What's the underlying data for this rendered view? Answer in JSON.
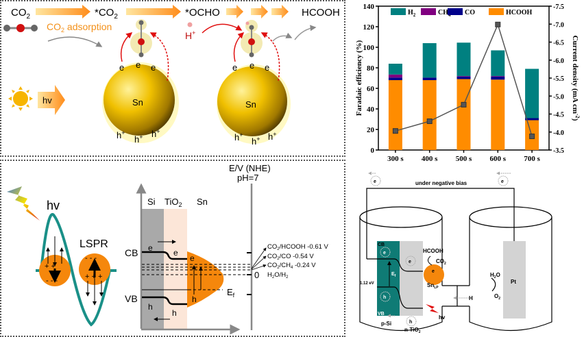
{
  "panel_a": {
    "steps": [
      "CO2",
      "*CO2",
      "*OCHO",
      "HCOOH"
    ],
    "step_subs": {
      "co2": "CO",
      "sub2": "2",
      "ast_co2": "*CO",
      "ocho": "*OCHO",
      "hcooh": "HCOOH"
    },
    "adsorption_label": "CO",
    "adsorption_sub": "2",
    "adsorption_rest": " adsorption",
    "hv_label": "hv",
    "proton_label": "H",
    "proton_sup": "+",
    "particle_label": "Sn",
    "electron_label": "e",
    "electron_sup": "-",
    "hole_label": "h",
    "hole_sup": "+"
  },
  "panel_b": {
    "hv_label": "hv",
    "lspr_label": "LSPR",
    "axis_title": "E/V (NHE)",
    "ph_label": "pH=7",
    "layers": [
      "Si",
      "TiO",
      "Sn"
    ],
    "tio2_sub": "2",
    "cb_label": "CB",
    "vb_label": "VB",
    "ef_label": "E",
    "ef_sub": "f",
    "zero_label": "0",
    "potentials": [
      {
        "pre": "CO",
        "sub": "2",
        "post": "/HCOOH -0.61 V"
      },
      {
        "pre": "CO",
        "sub": "2",
        "post": "/CO -0.54 V"
      },
      {
        "pre": "CO",
        "sub": "2",
        "post": "/CH",
        "sub2": "4",
        "post2": " -0.24 V"
      },
      {
        "pre": "H",
        "sub": "2",
        "post": "O/H",
        "sub2": "2",
        "post2": ""
      }
    ],
    "electron": "e",
    "hole": "h"
  },
  "chart_data": {
    "type": "bar",
    "stacked": true,
    "categories": [
      "300 s",
      "400 s",
      "500 s",
      "600 s",
      "700 s"
    ],
    "series": [
      {
        "name": "HCOOH",
        "color": "#ff8c00",
        "values": [
          68,
          68,
          69,
          68.5,
          29
        ]
      },
      {
        "name": "CO",
        "color": "#00008b",
        "values": [
          2.5,
          2.5,
          2.5,
          3,
          2
        ]
      },
      {
        "name": "CH4",
        "color": "#800080",
        "values": [
          3,
          0,
          0.5,
          0.5,
          0
        ]
      },
      {
        "name": "H2",
        "color": "#008080",
        "values": [
          10.5,
          33.5,
          32.5,
          25,
          48
        ]
      }
    ],
    "line_series": {
      "name": "Current density",
      "color": "#555555",
      "values": [
        -4.03,
        -4.3,
        -4.76,
        -6.99,
        -3.88
      ]
    },
    "legend": [
      "H2",
      "CH4",
      "CO",
      "HCOOH"
    ],
    "legend_display": [
      {
        "t": "H",
        "s": "2"
      },
      {
        "t": "CH",
        "s": "4"
      },
      {
        "t": "CO",
        "s": ""
      },
      {
        "t": "HCOOH",
        "s": ""
      }
    ],
    "ylabel": "Faradaic efficiency (%)",
    "ylabel_right": "Current density (mA cm",
    "ylabel_right_sup": "-2",
    "ylabel_right_end": ")",
    "ylim": [
      0,
      140
    ],
    "yticks": [
      0,
      20,
      40,
      60,
      80,
      100,
      120,
      140
    ],
    "y2lim": [
      -3.5,
      -7.5
    ],
    "y2ticks": [
      "-3.5",
      "-4.0",
      "-4.5",
      "-5.0",
      "-5.5",
      "-6.0",
      "-6.5",
      "-7.0",
      "-7.5"
    ],
    "legend_position": "top"
  },
  "panel_d": {
    "bias_label": "under negative bias",
    "electron": "e",
    "cb_label": "CB",
    "vb_label": "VB",
    "ef_label": "E",
    "ef_sub": "f",
    "gap_label": "1.12 eV",
    "hole": "h",
    "psi_label": "p-Si",
    "ntio2_label": "n-TiO",
    "ntio2_sub": "2",
    "hcooh_label": "HCOOH",
    "co2_label": "CO",
    "co2_sub": "2",
    "sn_label": "Sn",
    "sn_sub": "LP",
    "hv_label": "hv",
    "proton_label": "H",
    "h2o_label": "H",
    "h2o_sub": "2",
    "h2o_post": "O",
    "o2_label": "O",
    "o2_sub": "2",
    "pt_label": "Pt"
  }
}
